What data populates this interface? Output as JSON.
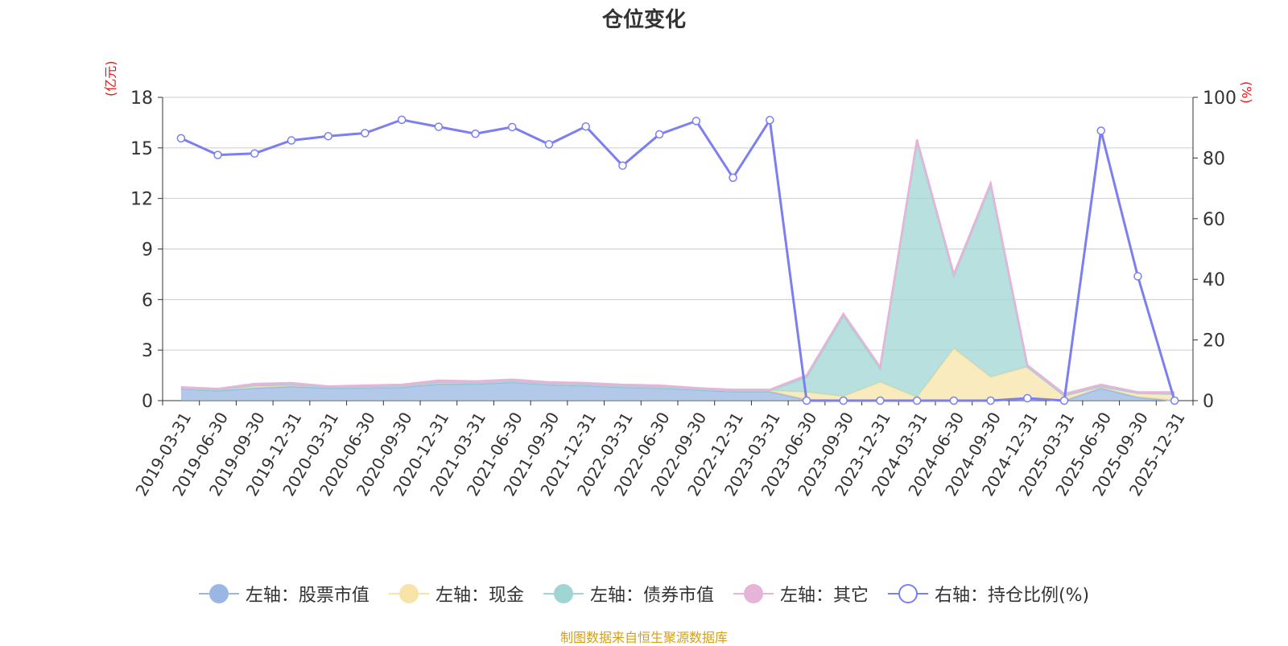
{
  "title": "仓位变化",
  "source": "制图数据来自恒生聚源数据库",
  "colors": {
    "stock": "#9ab7e3",
    "cash": "#f8e4a8",
    "bond": "#9fd6d4",
    "other": "#e6b3d9",
    "ratio": "#7b7ff0",
    "unit": "#ee1111",
    "source": "#d4a017",
    "grid": "#cccccc",
    "axis": "#333333"
  },
  "legend": [
    {
      "key": "stock",
      "label": "左轴：股票市值",
      "icon": "filled-circle-icon"
    },
    {
      "key": "cash",
      "label": "左轴：现金",
      "icon": "filled-circle-icon"
    },
    {
      "key": "bond",
      "label": "左轴：债券市值",
      "icon": "filled-circle-icon"
    },
    {
      "key": "other",
      "label": "左轴：其它",
      "icon": "filled-circle-icon"
    },
    {
      "key": "ratio",
      "label": "右轴：持仓比例(%)",
      "icon": "hollow-circle-icon"
    }
  ],
  "chart_data": {
    "type": "area",
    "title": "仓位变化",
    "ylabel_left": "(亿元)",
    "ylabel_right": "(%)",
    "ylim_left": [
      0,
      18
    ],
    "yticks_left": [
      0,
      3,
      6,
      9,
      12,
      15,
      18
    ],
    "ylim_right": [
      0,
      100
    ],
    "yticks_right": [
      0,
      20,
      40,
      60,
      80,
      100
    ],
    "categories": [
      "2019-03-31",
      "2019-06-30",
      "2019-09-30",
      "2019-12-31",
      "2020-03-31",
      "2020-06-30",
      "2020-09-30",
      "2020-12-31",
      "2021-03-31",
      "2021-06-30",
      "2021-09-30",
      "2021-12-31",
      "2022-03-31",
      "2022-06-30",
      "2022-09-30",
      "2022-12-31",
      "2023-03-31",
      "2023-06-30",
      "2023-09-30",
      "2023-12-31",
      "2024-03-31",
      "2024-06-30",
      "2024-09-30",
      "2024-12-31",
      "2025-03-31",
      "2025-06-30",
      "2025-09-30",
      "2025-12-31"
    ],
    "series": [
      {
        "key": "stock",
        "name": "左轴：股票市值",
        "axis": "left",
        "stack": true,
        "values": [
          0.7,
          0.6,
          0.75,
          0.85,
          0.75,
          0.75,
          0.8,
          1.0,
          1.0,
          1.1,
          0.95,
          0.9,
          0.8,
          0.75,
          0.65,
          0.55,
          0.55,
          0.05,
          0.0,
          0.0,
          0.0,
          0.0,
          0.0,
          0.15,
          0.0,
          0.75,
          0.2,
          0.0
        ]
      },
      {
        "key": "cash",
        "name": "左轴：现金",
        "axis": "left",
        "stack": true,
        "values": [
          0.05,
          0.05,
          0.15,
          0.1,
          0.05,
          0.05,
          0.05,
          0.1,
          0.05,
          0.05,
          0.05,
          0.05,
          0.05,
          0.05,
          0.05,
          0.05,
          0.05,
          0.45,
          0.25,
          1.1,
          0.2,
          3.1,
          1.4,
          1.85,
          0.3,
          0.1,
          0.25,
          0.4
        ]
      },
      {
        "key": "bond",
        "name": "左轴：债券市值",
        "axis": "left",
        "stack": true,
        "values": [
          0,
          0,
          0,
          0,
          0,
          0,
          0,
          0,
          0,
          0,
          0,
          0,
          0,
          0,
          0,
          0,
          0,
          0.9,
          4.8,
          0.8,
          15.2,
          4.3,
          11.4,
          0.0,
          0.0,
          0.0,
          0.0,
          0.0
        ]
      },
      {
        "key": "other",
        "name": "左轴：其它",
        "axis": "left",
        "stack": true,
        "values": [
          0.05,
          0.05,
          0.1,
          0.1,
          0.05,
          0.1,
          0.1,
          0.1,
          0.1,
          0.1,
          0.1,
          0.1,
          0.1,
          0.1,
          0.05,
          0.05,
          0.05,
          0.1,
          0.1,
          0.1,
          0.1,
          0.1,
          0.1,
          0.1,
          0.1,
          0.1,
          0.05,
          0.1
        ]
      },
      {
        "key": "ratio",
        "name": "右轴：持仓比例(%)",
        "axis": "right",
        "type": "line",
        "values": [
          86.5,
          81,
          81.5,
          85.8,
          87.2,
          88.2,
          92.6,
          90.3,
          88,
          90.2,
          84.5,
          90.4,
          77.5,
          87.8,
          92.2,
          73.5,
          92.5,
          0,
          0,
          0,
          0,
          0,
          0,
          0.8,
          0,
          89,
          41,
          0
        ]
      }
    ]
  }
}
